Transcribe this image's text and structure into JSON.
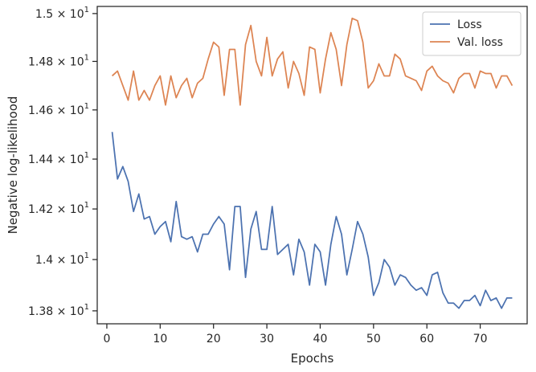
{
  "chart_data": {
    "type": "line",
    "xlabel": "Epochs",
    "ylabel": "Negative log-likelihood",
    "xlim": [
      -1.8,
      78.8
    ],
    "ylim": [
      13.75,
      15.03
    ],
    "yscale": "log",
    "grid": false,
    "legend_position": "top-right",
    "x_ticks": [
      0,
      10,
      20,
      30,
      40,
      50,
      60,
      70
    ],
    "x_tick_labels": [
      "0",
      "10",
      "20",
      "30",
      "40",
      "50",
      "60",
      "70"
    ],
    "y_ticks": [
      13.8,
      14.0,
      14.2,
      14.4,
      14.6,
      14.8,
      15.0
    ],
    "y_tick_labels": [
      {
        "mantissa": "1.38",
        "times": "×",
        "base": "10",
        "exp": "1"
      },
      {
        "mantissa": "1.4",
        "times": "×",
        "base": "10",
        "exp": "1"
      },
      {
        "mantissa": "1.42",
        "times": "×",
        "base": "10",
        "exp": "1"
      },
      {
        "mantissa": "1.44",
        "times": "×",
        "base": "10",
        "exp": "1"
      },
      {
        "mantissa": "1.46",
        "times": "×",
        "base": "10",
        "exp": "1"
      },
      {
        "mantissa": "1.48",
        "times": "×",
        "base": "10",
        "exp": "1"
      },
      {
        "mantissa": "1.5",
        "times": "×",
        "base": "10",
        "exp": "1"
      }
    ],
    "series": [
      {
        "name": "Loss",
        "color": "#4c72b0",
        "x": [
          1,
          2,
          3,
          4,
          5,
          6,
          7,
          8,
          9,
          10,
          11,
          12,
          13,
          14,
          15,
          16,
          17,
          18,
          19,
          20,
          21,
          22,
          23,
          24,
          25,
          26,
          27,
          28,
          29,
          30,
          31,
          32,
          33,
          34,
          35,
          36,
          37,
          38,
          39,
          40,
          41,
          42,
          43,
          44,
          45,
          46,
          47,
          48,
          49,
          50,
          51,
          52,
          53,
          54,
          55,
          56,
          57,
          58,
          59,
          60,
          61,
          62,
          63,
          64,
          65,
          66,
          67,
          68,
          69,
          70,
          71,
          72,
          73,
          74,
          75,
          76
        ],
        "y": [
          14.51,
          14.32,
          14.37,
          14.31,
          14.19,
          14.26,
          14.16,
          14.17,
          14.1,
          14.13,
          14.15,
          14.07,
          14.23,
          14.09,
          14.08,
          14.09,
          14.03,
          14.1,
          14.1,
          14.14,
          14.17,
          14.14,
          13.96,
          14.21,
          14.21,
          13.93,
          14.12,
          14.19,
          14.04,
          14.04,
          14.21,
          14.02,
          14.04,
          14.06,
          13.94,
          14.08,
          14.03,
          13.9,
          14.06,
          14.03,
          13.9,
          14.06,
          14.17,
          14.1,
          13.94,
          14.04,
          14.15,
          14.1,
          14.01,
          13.86,
          13.91,
          14.0,
          13.97,
          13.9,
          13.94,
          13.93,
          13.9,
          13.88,
          13.89,
          13.86,
          13.94,
          13.95,
          13.87,
          13.83,
          13.83,
          13.81,
          13.84,
          13.84,
          13.86,
          13.82,
          13.88,
          13.84,
          13.85,
          13.81,
          13.85,
          13.85
        ]
      },
      {
        "name": "Val. loss",
        "color": "#dd8452",
        "x": [
          1,
          2,
          3,
          4,
          5,
          6,
          7,
          8,
          9,
          10,
          11,
          12,
          13,
          14,
          15,
          16,
          17,
          18,
          19,
          20,
          21,
          22,
          23,
          24,
          25,
          26,
          27,
          28,
          29,
          30,
          31,
          32,
          33,
          34,
          35,
          36,
          37,
          38,
          39,
          40,
          41,
          42,
          43,
          44,
          45,
          46,
          47,
          48,
          49,
          50,
          51,
          52,
          53,
          54,
          55,
          56,
          57,
          58,
          59,
          60,
          61,
          62,
          63,
          64,
          65,
          66,
          67,
          68,
          69,
          70,
          71,
          72,
          73,
          74,
          75,
          76
        ],
        "y": [
          14.74,
          14.76,
          14.7,
          14.64,
          14.76,
          14.64,
          14.68,
          14.64,
          14.7,
          14.74,
          14.62,
          14.74,
          14.65,
          14.7,
          14.73,
          14.65,
          14.71,
          14.73,
          14.81,
          14.88,
          14.86,
          14.66,
          14.85,
          14.85,
          14.62,
          14.87,
          14.95,
          14.8,
          14.74,
          14.9,
          14.74,
          14.81,
          14.84,
          14.69,
          14.8,
          14.75,
          14.66,
          14.86,
          14.85,
          14.67,
          14.81,
          14.92,
          14.85,
          14.7,
          14.87,
          14.98,
          14.97,
          14.88,
          14.69,
          14.72,
          14.79,
          14.74,
          14.74,
          14.83,
          14.81,
          14.74,
          14.73,
          14.72,
          14.68,
          14.76,
          14.78,
          14.74,
          14.72,
          14.71,
          14.67,
          14.73,
          14.75,
          14.75,
          14.69,
          14.76,
          14.75,
          14.75,
          14.69,
          14.74,
          14.74,
          14.7
        ]
      }
    ]
  }
}
